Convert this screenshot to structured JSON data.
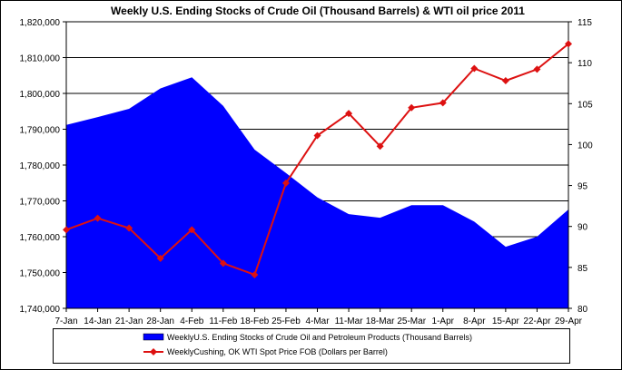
{
  "chart_data": {
    "type": "area+line",
    "title": "Weekly U.S. Ending Stocks of Crude Oil  (Thousand Barrels) & WTI oil price 2011",
    "categories": [
      "7-Jan",
      "14-Jan",
      "21-Jan",
      "28-Jan",
      "4-Feb",
      "11-Feb",
      "18-Feb",
      "25-Feb",
      "4-Mar",
      "11-Mar",
      "18-Mar",
      "25-Mar",
      "1-Apr",
      "8-Apr",
      "15-Apr",
      "22-Apr",
      "29-Apr"
    ],
    "series": [
      {
        "name": "WeeklyU.S. Ending Stocks of Crude Oil and Petroleum Products  (Thousand Barrels)",
        "type": "area",
        "axis": "left",
        "color": "#0000ff",
        "values": [
          1791200,
          1793400,
          1795700,
          1801400,
          1804500,
          1796500,
          1784300,
          1777800,
          1771000,
          1766300,
          1765300,
          1768800,
          1768800,
          1764200,
          1757200,
          1760000,
          1767600
        ]
      },
      {
        "name": "WeeklyCushing, OK WTI Spot Price FOB  (Dollars per Barrel)",
        "type": "line",
        "axis": "right",
        "color": "#dd1111",
        "marker": "diamond",
        "values": [
          89.6,
          91.0,
          89.8,
          86.1,
          89.6,
          85.5,
          84.1,
          95.3,
          101.1,
          103.8,
          99.8,
          104.5,
          105.1,
          109.3,
          107.8,
          109.2,
          112.3
        ]
      }
    ],
    "y_left": {
      "min": 1740000,
      "max": 1820000,
      "ticks": [
        "1,740,000",
        "1,750,000",
        "1,760,000",
        "1,770,000",
        "1,780,000",
        "1,790,000",
        "1,800,000",
        "1,810,000",
        "1,820,000"
      ]
    },
    "y_right": {
      "min": 80,
      "max": 115,
      "ticks": [
        "80",
        "85",
        "90",
        "95",
        "100",
        "105",
        "110",
        "115"
      ]
    },
    "grid": true,
    "legend": "bottom"
  }
}
